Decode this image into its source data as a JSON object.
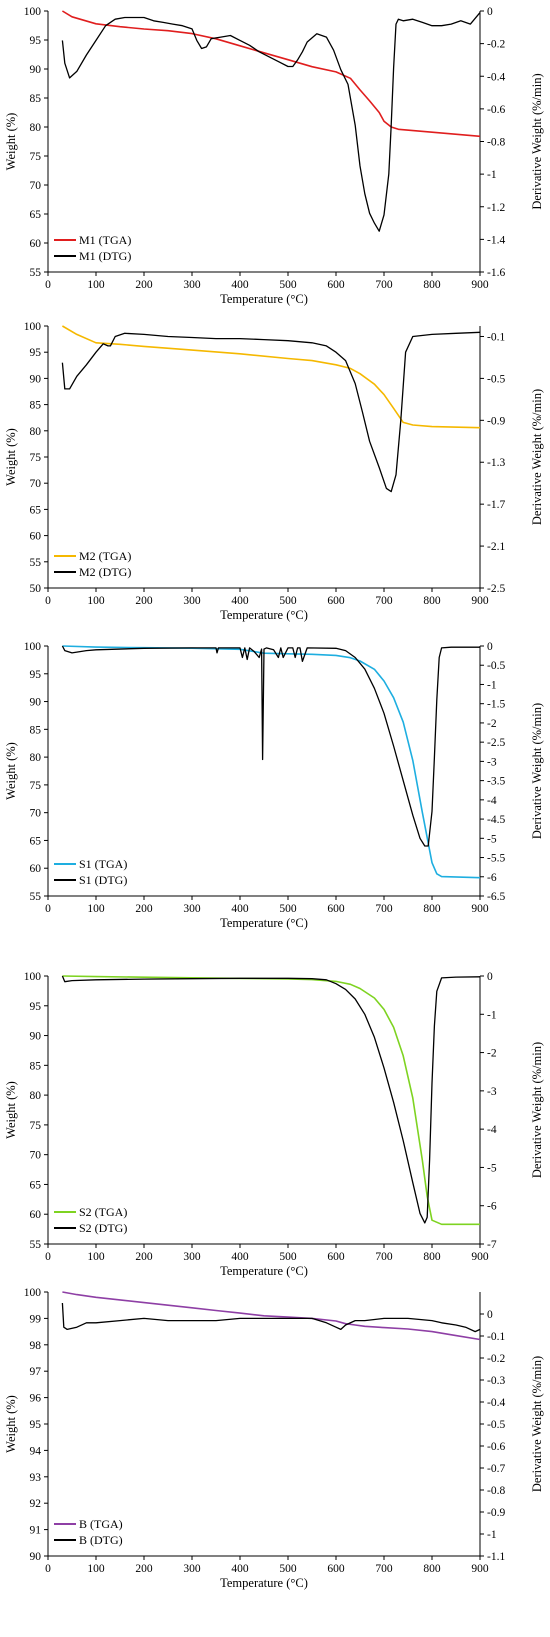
{
  "chart_data": [
    {
      "type": "line",
      "xlabel": "Temperature (°C)",
      "ylabel": "Weight (%)",
      "y2label": "Derivative Weight (%/min)",
      "xlim": [
        0,
        900
      ],
      "x_ticks": [
        0,
        100,
        200,
        300,
        400,
        500,
        600,
        700,
        800,
        900
      ],
      "ylim": [
        55,
        100
      ],
      "y_ticks": [
        55,
        60,
        65,
        70,
        75,
        80,
        85,
        90,
        95,
        100
      ],
      "y2lim": [
        -1.6,
        0
      ],
      "y2_ticks": [
        0,
        -0.2,
        -0.4,
        -0.6,
        -0.8,
        -1,
        -1.2,
        -1.4,
        -1.6
      ],
      "y2_tick_labels": [
        "0",
        "-0.2",
        "-0.4",
        "-0.6",
        "-0.8",
        "-1",
        "-1.2",
        "-1.4",
        "-1.6"
      ],
      "grid": false,
      "legend_position": "bottom-left",
      "series": [
        {
          "name": "M1 (TGA)",
          "axis": "left",
          "color": "#e01e1e",
          "x": [
            30,
            50,
            100,
            150,
            200,
            250,
            300,
            350,
            400,
            450,
            500,
            550,
            600,
            630,
            650,
            670,
            690,
            700,
            715,
            730,
            800,
            900
          ],
          "y": [
            100,
            99,
            97.8,
            97.3,
            96.9,
            96.6,
            96.1,
            95.2,
            94,
            92.8,
            91.6,
            90.4,
            89.5,
            88.4,
            86.4,
            84.5,
            82.5,
            81,
            80,
            79.6,
            79.1,
            78.4
          ]
        },
        {
          "name": "M1 (DTG)",
          "axis": "right",
          "color": "#000000",
          "x": [
            30,
            35,
            45,
            60,
            80,
            100,
            120,
            140,
            160,
            180,
            200,
            220,
            240,
            260,
            280,
            300,
            310,
            320,
            330,
            340,
            360,
            380,
            400,
            420,
            440,
            460,
            480,
            500,
            510,
            520,
            530,
            540,
            560,
            580,
            595,
            610,
            625,
            640,
            650,
            660,
            670,
            680,
            690,
            700,
            710,
            715,
            720,
            725,
            730,
            740,
            760,
            780,
            800,
            820,
            840,
            860,
            880,
            900
          ],
          "y": [
            -0.18,
            -0.32,
            -0.41,
            -0.37,
            -0.27,
            -0.18,
            -0.09,
            -0.05,
            -0.04,
            -0.04,
            -0.04,
            -0.06,
            -0.07,
            -0.08,
            -0.09,
            -0.11,
            -0.18,
            -0.23,
            -0.22,
            -0.17,
            -0.16,
            -0.15,
            -0.18,
            -0.21,
            -0.25,
            -0.28,
            -0.31,
            -0.34,
            -0.34,
            -0.3,
            -0.25,
            -0.19,
            -0.14,
            -0.16,
            -0.24,
            -0.36,
            -0.45,
            -0.7,
            -0.95,
            -1.12,
            -1.24,
            -1.3,
            -1.35,
            -1.25,
            -1.0,
            -0.7,
            -0.35,
            -0.08,
            -0.05,
            -0.06,
            -0.05,
            -0.07,
            -0.09,
            -0.09,
            -0.08,
            -0.06,
            -0.08,
            -0.01
          ]
        }
      ]
    },
    {
      "type": "line",
      "xlabel": "Temperature (°C)",
      "ylabel": "Weight (%)",
      "y2label": "Derivative Weight (%/min)",
      "xlim": [
        0,
        900
      ],
      "x_ticks": [
        0,
        100,
        200,
        300,
        400,
        500,
        600,
        700,
        800,
        900
      ],
      "ylim": [
        50,
        100
      ],
      "y_ticks": [
        50,
        55,
        60,
        65,
        70,
        75,
        80,
        85,
        90,
        95,
        100
      ],
      "y2lim": [
        -2.5,
        0
      ],
      "y2_ticks": [
        -0.1,
        -0.5,
        -0.9,
        -1.3,
        -1.7,
        -2.1,
        -2.5
      ],
      "y2_tick_labels": [
        "-0.1",
        "-0.5",
        "-0.9",
        "-1.3",
        "-1.7",
        "-2.1",
        "-2.5"
      ],
      "grid": false,
      "legend_position": "bottom-left",
      "series": [
        {
          "name": "M2 (TGA)",
          "axis": "left",
          "color": "#f5b800",
          "x": [
            30,
            60,
            100,
            150,
            200,
            300,
            400,
            500,
            550,
            600,
            630,
            650,
            680,
            700,
            720,
            740,
            760,
            800,
            900
          ],
          "y": [
            100,
            98.4,
            96.8,
            96.5,
            96.1,
            95.4,
            94.7,
            93.8,
            93.4,
            92.6,
            91.9,
            90.9,
            88.9,
            86.9,
            84.3,
            81.6,
            81.1,
            80.8,
            80.6
          ]
        },
        {
          "name": "M2 (DTG)",
          "axis": "right",
          "color": "#000000",
          "x": [
            30,
            35,
            45,
            60,
            80,
            100,
            115,
            125,
            130,
            140,
            160,
            200,
            250,
            300,
            350,
            400,
            450,
            500,
            550,
            580,
            600,
            620,
            640,
            655,
            670,
            690,
            705,
            715,
            725,
            735,
            745,
            760,
            800,
            850,
            900
          ],
          "y": [
            -0.35,
            -0.6,
            -0.6,
            -0.48,
            -0.37,
            -0.25,
            -0.17,
            -0.19,
            -0.19,
            -0.1,
            -0.07,
            -0.08,
            -0.1,
            -0.11,
            -0.12,
            -0.12,
            -0.13,
            -0.14,
            -0.16,
            -0.19,
            -0.25,
            -0.33,
            -0.55,
            -0.82,
            -1.1,
            -1.35,
            -1.55,
            -1.58,
            -1.42,
            -0.9,
            -0.25,
            -0.1,
            -0.08,
            -0.07,
            -0.06
          ]
        }
      ]
    },
    {
      "type": "line",
      "xlabel": "Temperature (°C)",
      "ylabel": "Weight (%)",
      "y2label": "Derivative Weight (%/min)",
      "xlim": [
        0,
        900
      ],
      "x_ticks": [
        0,
        100,
        200,
        300,
        400,
        500,
        600,
        700,
        800,
        900
      ],
      "ylim": [
        55,
        100
      ],
      "y_ticks": [
        55,
        60,
        65,
        70,
        75,
        80,
        85,
        90,
        95,
        100
      ],
      "y2lim": [
        -6.5,
        0
      ],
      "y2_ticks": [
        0,
        -0.5,
        -1,
        -1.5,
        -2,
        -2.5,
        -3,
        -3.5,
        -4,
        -4.5,
        -5,
        -5.5,
        -6,
        -6.5
      ],
      "y2_tick_labels": [
        "0",
        "-0.5",
        "-1",
        "-1.5",
        "-2",
        "-2.5",
        "-3",
        "-3.5",
        "-4",
        "-4.5",
        "-5",
        "-5.5",
        "-6",
        "-6.5"
      ],
      "grid": false,
      "legend_position": "bottom-left",
      "series": [
        {
          "name": "S1 (TGA)",
          "axis": "left",
          "color": "#1eaee0",
          "x": [
            30,
            100,
            200,
            300,
            400,
            450,
            500,
            550,
            600,
            630,
            650,
            680,
            700,
            720,
            740,
            760,
            780,
            800,
            810,
            820,
            900
          ],
          "y": [
            100,
            99.8,
            99.7,
            99.6,
            99.4,
            98.7,
            98.6,
            98.5,
            98.3,
            97.9,
            97.3,
            95.8,
            93.7,
            90.7,
            86.3,
            79.4,
            70,
            61,
            59,
            58.5,
            58.3
          ]
        },
        {
          "name": "S1 (DTG)",
          "axis": "right",
          "color": "#000000",
          "x": [
            30,
            35,
            50,
            80,
            100,
            200,
            300,
            350,
            352,
            355,
            400,
            405,
            410,
            415,
            420,
            430,
            440,
            445,
            447,
            450,
            455,
            470,
            480,
            485,
            490,
            500,
            510,
            515,
            520,
            525,
            530,
            540,
            600,
            620,
            640,
            660,
            680,
            700,
            720,
            740,
            760,
            775,
            785,
            792,
            800,
            805,
            810,
            815,
            820,
            840,
            900
          ],
          "y": [
            0,
            -0.12,
            -0.18,
            -0.12,
            -0.1,
            -0.06,
            -0.05,
            -0.05,
            -0.18,
            -0.05,
            -0.05,
            -0.3,
            -0.05,
            -0.35,
            -0.05,
            -0.15,
            -0.3,
            -0.08,
            -2.95,
            -0.08,
            -0.05,
            -0.1,
            -0.3,
            -0.05,
            -0.3,
            -0.05,
            -0.05,
            -0.3,
            -0.05,
            -0.05,
            -0.4,
            -0.05,
            -0.06,
            -0.12,
            -0.3,
            -0.6,
            -1.1,
            -1.75,
            -2.6,
            -3.5,
            -4.4,
            -5,
            -5.2,
            -5.2,
            -4.3,
            -2.9,
            -1.4,
            -0.3,
            -0.05,
            -0.03,
            -0.03
          ]
        }
      ]
    },
    {
      "type": "line",
      "xlabel": "Temperature (°C)",
      "ylabel": "Weight (%)",
      "y2label": "Derivative Weight (%/min)",
      "xlim": [
        0,
        900
      ],
      "x_ticks": [
        0,
        100,
        200,
        300,
        400,
        500,
        600,
        700,
        800,
        900
      ],
      "ylim": [
        55,
        100
      ],
      "y_ticks": [
        55,
        60,
        65,
        70,
        75,
        80,
        85,
        90,
        95,
        100
      ],
      "y2lim": [
        -7,
        0
      ],
      "y2_ticks": [
        0,
        -1,
        -2,
        -3,
        -4,
        -5,
        -6,
        -7
      ],
      "y2_tick_labels": [
        "0",
        "-1",
        "-2",
        "-3",
        "-4",
        "-5",
        "-6",
        "-7"
      ],
      "grid": false,
      "legend_position": "bottom-left",
      "series": [
        {
          "name": "S2 (TGA)",
          "axis": "left",
          "color": "#7ed321",
          "x": [
            30,
            100,
            200,
            300,
            400,
            500,
            550,
            600,
            630,
            650,
            680,
            700,
            720,
            740,
            760,
            780,
            790,
            800,
            820,
            900
          ],
          "y": [
            100,
            99.9,
            99.8,
            99.7,
            99.6,
            99.5,
            99.4,
            99.1,
            98.6,
            97.9,
            96.3,
            94.4,
            91.4,
            86.6,
            79.5,
            69,
            63,
            59,
            58.3,
            58.3
          ]
        },
        {
          "name": "S2 (DTG)",
          "axis": "right",
          "color": "#000000",
          "x": [
            30,
            35,
            50,
            100,
            200,
            300,
            400,
            500,
            550,
            580,
            600,
            620,
            640,
            660,
            680,
            700,
            720,
            740,
            760,
            775,
            785,
            790,
            795,
            800,
            805,
            810,
            820,
            850,
            900
          ],
          "y": [
            0,
            -0.15,
            -0.12,
            -0.1,
            -0.08,
            -0.07,
            -0.06,
            -0.06,
            -0.07,
            -0.1,
            -0.2,
            -0.35,
            -0.6,
            -1,
            -1.6,
            -2.4,
            -3.3,
            -4.3,
            -5.4,
            -6.2,
            -6.45,
            -6.3,
            -4.8,
            -2.8,
            -1.3,
            -0.4,
            -0.05,
            -0.03,
            -0.02
          ]
        }
      ]
    },
    {
      "type": "line",
      "xlabel": "Temperature (°C)",
      "ylabel": "Weight (%)",
      "y2label": "Derivative Weight (%/min)",
      "xlim": [
        0,
        900
      ],
      "x_ticks": [
        0,
        100,
        200,
        300,
        400,
        500,
        600,
        700,
        800,
        900
      ],
      "ylim": [
        90,
        100
      ],
      "y_ticks": [
        90,
        91,
        92,
        93,
        94,
        95,
        96,
        97,
        98,
        99,
        100
      ],
      "y2lim": [
        -1.1,
        0.1
      ],
      "y2_ticks": [
        0,
        -0.1,
        -0.2,
        -0.3,
        -0.4,
        -0.5,
        -0.6,
        -0.7,
        -0.8,
        -0.9,
        -1,
        -1.1
      ],
      "y2_tick_labels": [
        "0",
        "-0.1",
        "-0.2",
        "-0.3",
        "-0.4",
        "-0.5",
        "-0.6",
        "-0.7",
        "-0.8",
        "-0.9",
        "-1",
        "-1.1"
      ],
      "grid": false,
      "legend_position": "bottom-left",
      "series": [
        {
          "name": "B (TGA)",
          "axis": "left",
          "color": "#8e3fa5",
          "x": [
            30,
            60,
            100,
            150,
            200,
            250,
            300,
            350,
            400,
            450,
            500,
            550,
            600,
            620,
            640,
            660,
            700,
            750,
            800,
            850,
            900
          ],
          "y": [
            100,
            99.9,
            99.8,
            99.7,
            99.6,
            99.5,
            99.4,
            99.3,
            99.2,
            99.1,
            99.05,
            99,
            98.9,
            98.8,
            98.75,
            98.7,
            98.65,
            98.6,
            98.5,
            98.35,
            98.2
          ]
        },
        {
          "name": "B (DTG)",
          "axis": "right",
          "color": "#000000",
          "x": [
            30,
            33,
            40,
            60,
            80,
            100,
            150,
            200,
            250,
            300,
            350,
            400,
            450,
            500,
            550,
            580,
            600,
            610,
            620,
            640,
            660,
            700,
            750,
            800,
            820,
            850,
            870,
            890,
            900
          ],
          "y": [
            0.05,
            -0.06,
            -0.07,
            -0.06,
            -0.04,
            -0.04,
            -0.03,
            -0.02,
            -0.03,
            -0.03,
            -0.03,
            -0.02,
            -0.02,
            -0.02,
            -0.02,
            -0.04,
            -0.06,
            -0.07,
            -0.05,
            -0.03,
            -0.03,
            -0.02,
            -0.02,
            -0.03,
            -0.04,
            -0.05,
            -0.06,
            -0.08,
            -0.07
          ]
        }
      ]
    }
  ]
}
